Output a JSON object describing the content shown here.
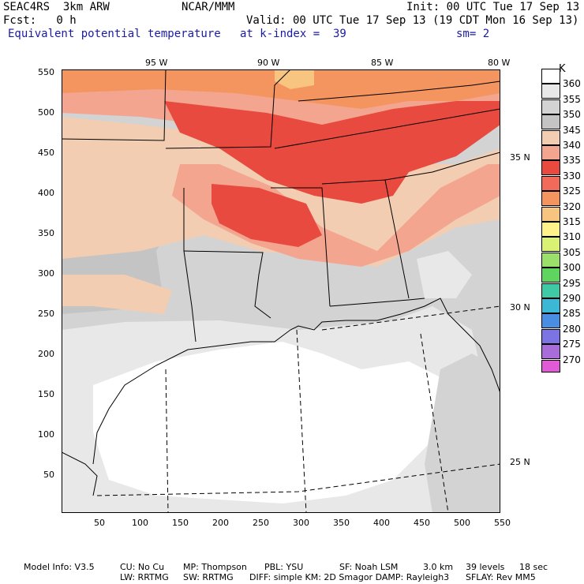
{
  "header": {
    "model": "SEAC4RS  3km ARW",
    "center": "NCAR/MMM",
    "init": "Init: 00 UTC Tue 17 Sep 13",
    "fcst": "Fcst:   0 h",
    "valid": "Valid: 00 UTC Tue 17 Sep 13 (19 CDT Mon 16 Sep 13)",
    "field": "Equivalent potential temperature",
    "level": "at k-index =  39",
    "smooth": "sm= 2"
  },
  "axes": {
    "x_ticks": [
      "50",
      "100",
      "150",
      "200",
      "250",
      "300",
      "350",
      "400",
      "450",
      "500",
      "550"
    ],
    "y_ticks": [
      "550",
      "500",
      "450",
      "400",
      "350",
      "300",
      "250",
      "200",
      "150",
      "100",
      "50"
    ],
    "lon_labels": [
      "95 W",
      "90 W",
      "85 W",
      "80 W"
    ],
    "lat_labels": [
      "35 N",
      "30 N",
      "25 N"
    ]
  },
  "legend": {
    "unit": "K",
    "levels": [
      {
        "value": "360",
        "color": "#ffffff"
      },
      {
        "value": "355",
        "color": "#e8e8e8"
      },
      {
        "value": "350",
        "color": "#d3d3d3"
      },
      {
        "value": "345",
        "color": "#c4c4c4"
      },
      {
        "value": "340",
        "color": "#f2cdb2"
      },
      {
        "value": "335",
        "color": "#f3a590"
      },
      {
        "value": "330",
        "color": "#e84a3f"
      },
      {
        "value": "325",
        "color": "#f26a5a"
      },
      {
        "value": "320",
        "color": "#f4945f"
      },
      {
        "value": "315",
        "color": "#f7c57f"
      },
      {
        "value": "310",
        "color": "#fff28a"
      },
      {
        "value": "305",
        "color": "#d9f274"
      },
      {
        "value": "300",
        "color": "#9be06a"
      },
      {
        "value": "295",
        "color": "#5fd55f"
      },
      {
        "value": "290",
        "color": "#3fc9a5"
      },
      {
        "value": "285",
        "color": "#3ab8d6"
      },
      {
        "value": "280",
        "color": "#4a8ee4"
      },
      {
        "value": "275",
        "color": "#7b74e2"
      },
      {
        "value": "270",
        "color": "#a86dd8"
      }
    ],
    "bottom_color": "#e35ad9"
  },
  "footer": {
    "line1": {
      "model_info": "Model Info: V3.5",
      "cu": "CU: No Cu",
      "mp": "MP: Thompson",
      "pbl": "PBL: YSU",
      "sf": "SF: Noah LSM",
      "res": "3.0 km",
      "levels": "39 levels",
      "dt": "18 sec"
    },
    "line2": {
      "lw": "LW: RRTMG",
      "sw": "SW: RRTMG",
      "diff": "DIFF: simple KM: 2D Smagor DAMP: Rayleigh3",
      "sflay": "SFLAY: Rev MM5"
    }
  }
}
